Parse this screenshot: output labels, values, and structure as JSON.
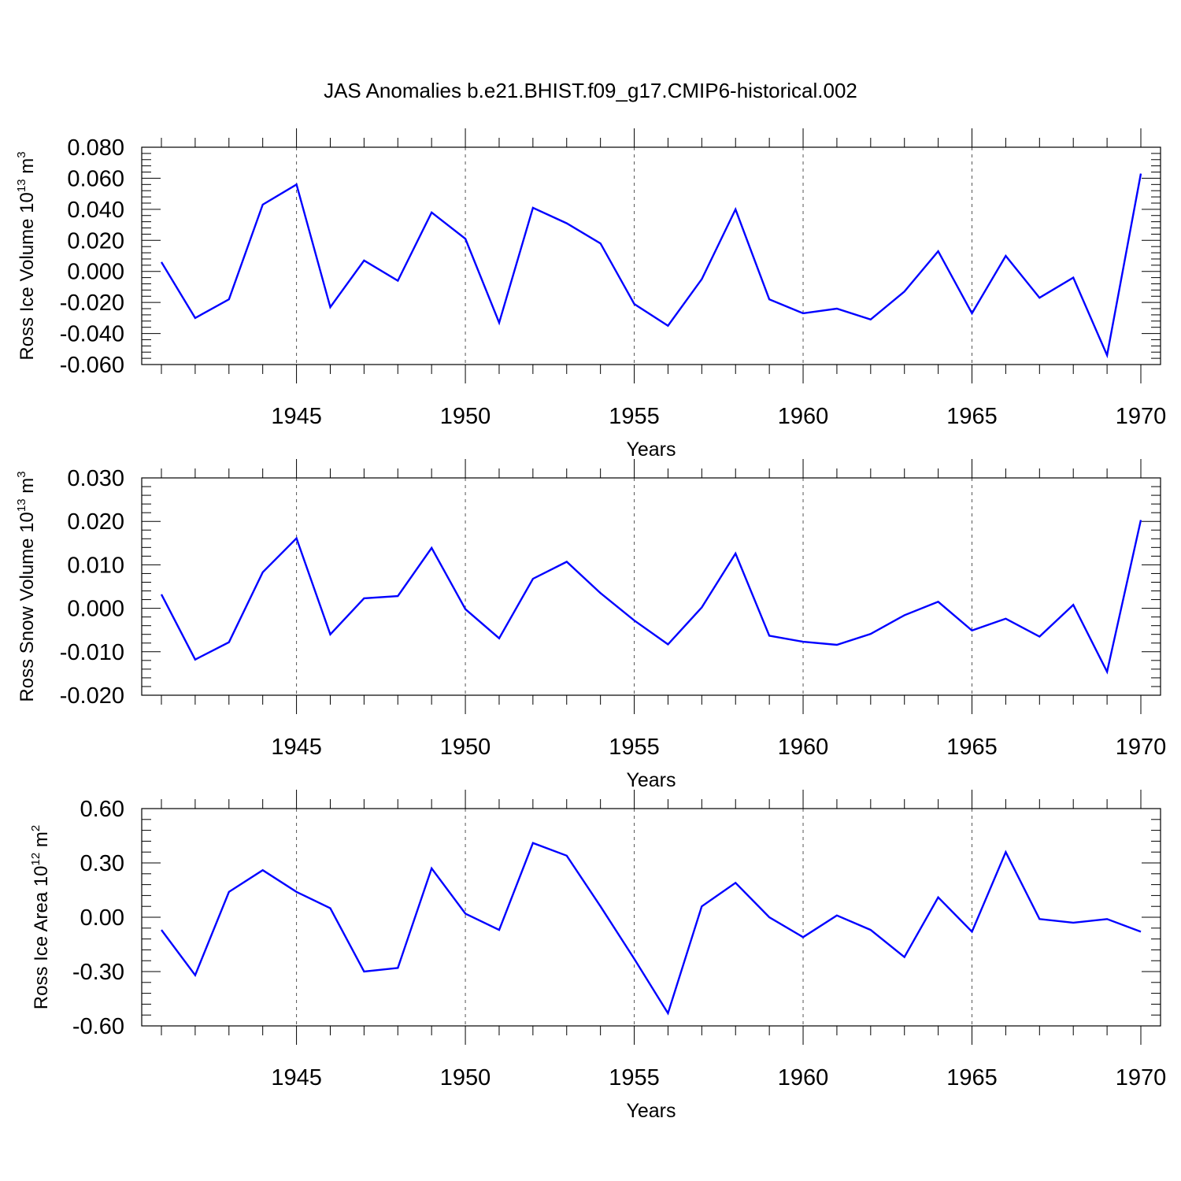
{
  "title": "JAS Anomalies b.e21.BHIST.f09_g17.CMIP6-historical.002",
  "colors": {
    "line": "#0000ff",
    "axis": "#000000",
    "grid": "#555555"
  },
  "chart_data": [
    {
      "type": "line",
      "ylabel": {
        "text": "Ross Ice Volume 10",
        "exp": "13",
        "unit": " m",
        "unit_exp": "3"
      },
      "xlabel": "Years",
      "xlim": [
        1941,
        1970
      ],
      "ylim": [
        -0.06,
        0.08
      ],
      "y_ticks": [
        -0.06,
        -0.04,
        -0.02,
        0.0,
        0.02,
        0.04,
        0.06,
        0.08
      ],
      "y_tick_labels": [
        "-0.060",
        "-0.040",
        "-0.020",
        "0.000",
        "0.020",
        "0.040",
        "0.060",
        "0.080"
      ],
      "x_ticks": [
        1945,
        1950,
        1955,
        1960,
        1965,
        1970
      ],
      "x_tick_labels": [
        "1945",
        "1950",
        "1955",
        "1960",
        "1965",
        "1970"
      ],
      "grid": "dashed vertical at major x ticks",
      "series": [
        {
          "x": [
            1941,
            1942,
            1943,
            1944,
            1945,
            1946,
            1947,
            1948,
            1949,
            1950,
            1951,
            1952,
            1953,
            1954,
            1955,
            1956,
            1957,
            1958,
            1959,
            1960,
            1961,
            1962,
            1963,
            1964,
            1965,
            1966,
            1967,
            1968,
            1969,
            1970
          ],
          "values": [
            0.006,
            -0.03,
            -0.018,
            0.043,
            0.056,
            -0.023,
            0.007,
            -0.006,
            0.038,
            0.021,
            -0.033,
            0.041,
            0.031,
            0.018,
            -0.021,
            -0.035,
            -0.005,
            0.04,
            -0.018,
            -0.027,
            -0.024,
            -0.031,
            -0.013,
            0.013,
            -0.027,
            0.01,
            -0.017,
            -0.004,
            -0.054,
            0.063
          ]
        }
      ]
    },
    {
      "type": "line",
      "ylabel": {
        "text": "Ross Snow Volume 10",
        "exp": "13",
        "unit": " m",
        "unit_exp": "3"
      },
      "xlabel": "Years",
      "xlim": [
        1941,
        1970
      ],
      "ylim": [
        -0.02,
        0.03
      ],
      "y_ticks": [
        -0.02,
        -0.01,
        0.0,
        0.01,
        0.02,
        0.03
      ],
      "y_tick_labels": [
        "-0.020",
        "-0.010",
        "0.000",
        "0.010",
        "0.020",
        "0.030"
      ],
      "x_ticks": [
        1945,
        1950,
        1955,
        1960,
        1965,
        1970
      ],
      "x_tick_labels": [
        "1945",
        "1950",
        "1955",
        "1960",
        "1965",
        "1970"
      ],
      "grid": "dashed vertical at major x ticks",
      "series": [
        {
          "x": [
            1941,
            1942,
            1943,
            1944,
            1945,
            1946,
            1947,
            1948,
            1949,
            1950,
            1951,
            1952,
            1953,
            1954,
            1955,
            1956,
            1957,
            1958,
            1959,
            1960,
            1961,
            1962,
            1963,
            1964,
            1965,
            1966,
            1967,
            1968,
            1969,
            1970
          ],
          "values": [
            0.0032,
            -0.0118,
            -0.0078,
            0.0083,
            0.0161,
            -0.006,
            0.0023,
            0.0028,
            0.0139,
            -0.0002,
            -0.0069,
            0.0068,
            0.0107,
            0.0035,
            -0.0028,
            -0.0083,
            0.0002,
            0.0126,
            -0.0063,
            -0.0077,
            -0.0084,
            -0.0059,
            -0.0016,
            0.0015,
            -0.0051,
            -0.0024,
            -0.0065,
            0.0008,
            -0.0146,
            0.0203
          ]
        }
      ]
    },
    {
      "type": "line",
      "ylabel": {
        "text": "Ross Ice Area 10",
        "exp": "12",
        "unit": " m",
        "unit_exp": "2"
      },
      "xlabel": "Years",
      "xlim": [
        1941,
        1970
      ],
      "ylim": [
        -0.6,
        0.6
      ],
      "y_ticks": [
        -0.6,
        -0.3,
        0.0,
        0.3,
        0.6
      ],
      "y_tick_labels": [
        "-0.60",
        "-0.30",
        "0.00",
        "0.30",
        "0.60"
      ],
      "x_ticks": [
        1945,
        1950,
        1955,
        1960,
        1965,
        1970
      ],
      "x_tick_labels": [
        "1945",
        "1950",
        "1955",
        "1960",
        "1965",
        "1970"
      ],
      "grid": "dashed vertical at major x ticks",
      "series": [
        {
          "x": [
            1941,
            1942,
            1943,
            1944,
            1945,
            1946,
            1947,
            1948,
            1949,
            1950,
            1951,
            1952,
            1953,
            1954,
            1955,
            1956,
            1957,
            1958,
            1959,
            1960,
            1961,
            1962,
            1963,
            1964,
            1965,
            1966,
            1967,
            1968,
            1969,
            1970
          ],
          "values": [
            -0.07,
            -0.32,
            0.14,
            0.26,
            0.14,
            0.05,
            -0.3,
            -0.28,
            0.27,
            0.02,
            -0.07,
            0.41,
            0.34,
            0.06,
            -0.23,
            -0.53,
            0.06,
            0.19,
            0.0,
            -0.11,
            0.01,
            -0.07,
            -0.22,
            0.11,
            -0.08,
            0.36,
            -0.01,
            -0.03,
            -0.01,
            -0.08
          ]
        }
      ]
    }
  ]
}
